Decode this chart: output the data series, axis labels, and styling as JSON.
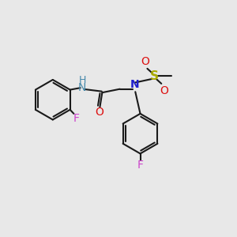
{
  "bg_color": "#e8e8e8",
  "bond_color": "#1a1a1a",
  "N_color": "#2020cc",
  "NH_color": "#4488aa",
  "O_color": "#dd1111",
  "F_color": "#cc44cc",
  "S_color": "#aaaa00",
  "lw": 1.5,
  "figsize": [
    3.0,
    3.0
  ],
  "dpi": 100,
  "xlim": [
    0,
    10
  ],
  "ylim": [
    0,
    10
  ],
  "ring_r": 0.85,
  "font_size": 10
}
